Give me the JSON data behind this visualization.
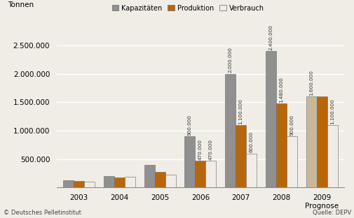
{
  "years": [
    "2003",
    "2004",
    "2005",
    "2006",
    "2007",
    "2008",
    "2009\nPrognose"
  ],
  "kapazitaeten": [
    130000,
    200000,
    400000,
    900000,
    2000000,
    2400000,
    1600000
  ],
  "produktion": [
    110000,
    180000,
    280000,
    470000,
    1100000,
    1480000,
    1600000
  ],
  "verbrauch": [
    100000,
    190000,
    230000,
    470000,
    600000,
    900000,
    1100000
  ],
  "annotations_kap": [
    null,
    null,
    null,
    "900.000",
    "2.000.000",
    "2.400.000",
    "1.600.000"
  ],
  "annotations_prod": [
    null,
    null,
    null,
    "470.000",
    "1.100.000",
    "1.480.000",
    null
  ],
  "annotations_verb": [
    null,
    null,
    null,
    "470.000",
    "600.000",
    "900.000",
    "1.100.000"
  ],
  "color_kap": "#909090",
  "color_kap_light": "#c8b89a",
  "color_prod": "#b8660a",
  "color_verb": "#f0ede8",
  "color_edge": "#666666",
  "ylim": [
    0,
    2800000
  ],
  "yticks": [
    0,
    500000,
    1000000,
    1500000,
    2000000,
    2500000
  ],
  "ytick_labels": [
    "",
    "500.000",
    "1.000.000",
    "1.500.000",
    "2.000.000",
    "2.500.000"
  ],
  "ylabel": "Tonnen",
  "legend_labels": [
    "Kapazitäten",
    "Produktion",
    "Verbrauch"
  ],
  "footer_left": "© Deutsches Pelletinstitut",
  "footer_right": "Quelle: DEPV",
  "bg_color": "#f0ede6",
  "bar_width": 0.26
}
